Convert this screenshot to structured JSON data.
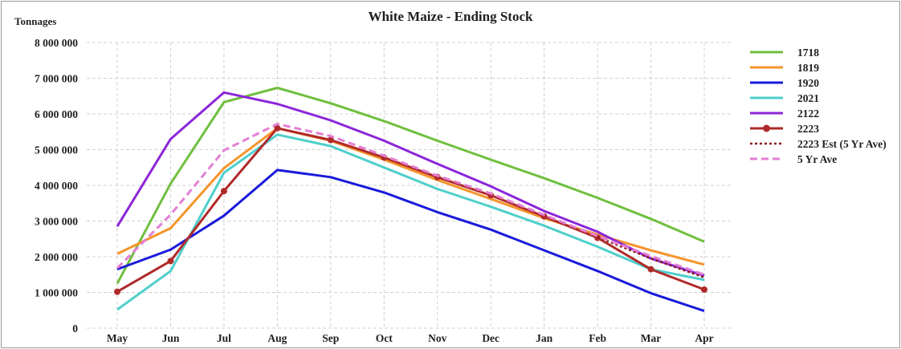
{
  "chart_data": {
    "type": "line",
    "title": "White Maize - Ending Stock",
    "ylabel": "Tonnages",
    "xlabel": "",
    "categories": [
      "May",
      "Jun",
      "Jul",
      "Aug",
      "Sep",
      "Oct",
      "Nov",
      "Dec",
      "Jan",
      "Feb",
      "Mar",
      "Apr"
    ],
    "ylim": [
      0,
      8000000
    ],
    "yticks": [
      0,
      1000000,
      2000000,
      3000000,
      4000000,
      5000000,
      6000000,
      7000000,
      8000000
    ],
    "ytick_labels": [
      "0",
      "1 000 000",
      "2 000 000",
      "3 000 000",
      "4 000 000",
      "5 000 000",
      "6 000 000",
      "7 000 000",
      "8 000 000"
    ],
    "grid": true,
    "legend_position": "right",
    "series": [
      {
        "name": "1718",
        "color": "#70bf3f",
        "style": "solid",
        "values": [
          1250000,
          4050000,
          6330000,
          6730000,
          6300000,
          5800000,
          5250000,
          4720000,
          4200000,
          3650000,
          3060000,
          2420000
        ]
      },
      {
        "name": "1819",
        "color": "#f5952b",
        "style": "solid",
        "values": [
          2080000,
          2800000,
          4480000,
          5600000,
          5250000,
          4720000,
          4150000,
          3620000,
          3080000,
          2620000,
          2180000,
          1780000
        ]
      },
      {
        "name": "1920",
        "color": "#1a1adb",
        "style": "solid",
        "values": [
          1650000,
          2200000,
          3150000,
          4430000,
          4230000,
          3800000,
          3250000,
          2760000,
          2180000,
          1600000,
          980000,
          480000
        ]
      },
      {
        "name": "2021",
        "color": "#4fcfcc",
        "style": "solid",
        "values": [
          520000,
          1600000,
          4350000,
          5420000,
          5100000,
          4500000,
          3900000,
          3400000,
          2870000,
          2280000,
          1650000,
          1350000
        ]
      },
      {
        "name": "2122",
        "color": "#8b26d9",
        "style": "solid",
        "values": [
          2850000,
          5300000,
          6600000,
          6280000,
          5820000,
          5250000,
          4600000,
          3970000,
          3280000,
          2700000,
          1950000,
          1470000
        ]
      },
      {
        "name": "2223",
        "color": "#b02a2a",
        "style": "solid-marker",
        "values": [
          1020000,
          1880000,
          3840000,
          5600000,
          5270000,
          4780000,
          4230000,
          3720000,
          3130000,
          2530000,
          1650000,
          1080000
        ]
      },
      {
        "name": "2223 Est (5 Yr Ave)",
        "color": "#8a1a1a",
        "style": "dotted",
        "values": [
          null,
          null,
          null,
          null,
          null,
          null,
          null,
          null,
          null,
          2550000,
          1950000,
          1420000
        ]
      },
      {
        "name": "5 Yr Ave",
        "color": "#e37fd3",
        "style": "dashed",
        "values": [
          1680000,
          3180000,
          4980000,
          5720000,
          5380000,
          4830000,
          4270000,
          3770000,
          3170000,
          2580000,
          2020000,
          1500000
        ]
      }
    ]
  }
}
